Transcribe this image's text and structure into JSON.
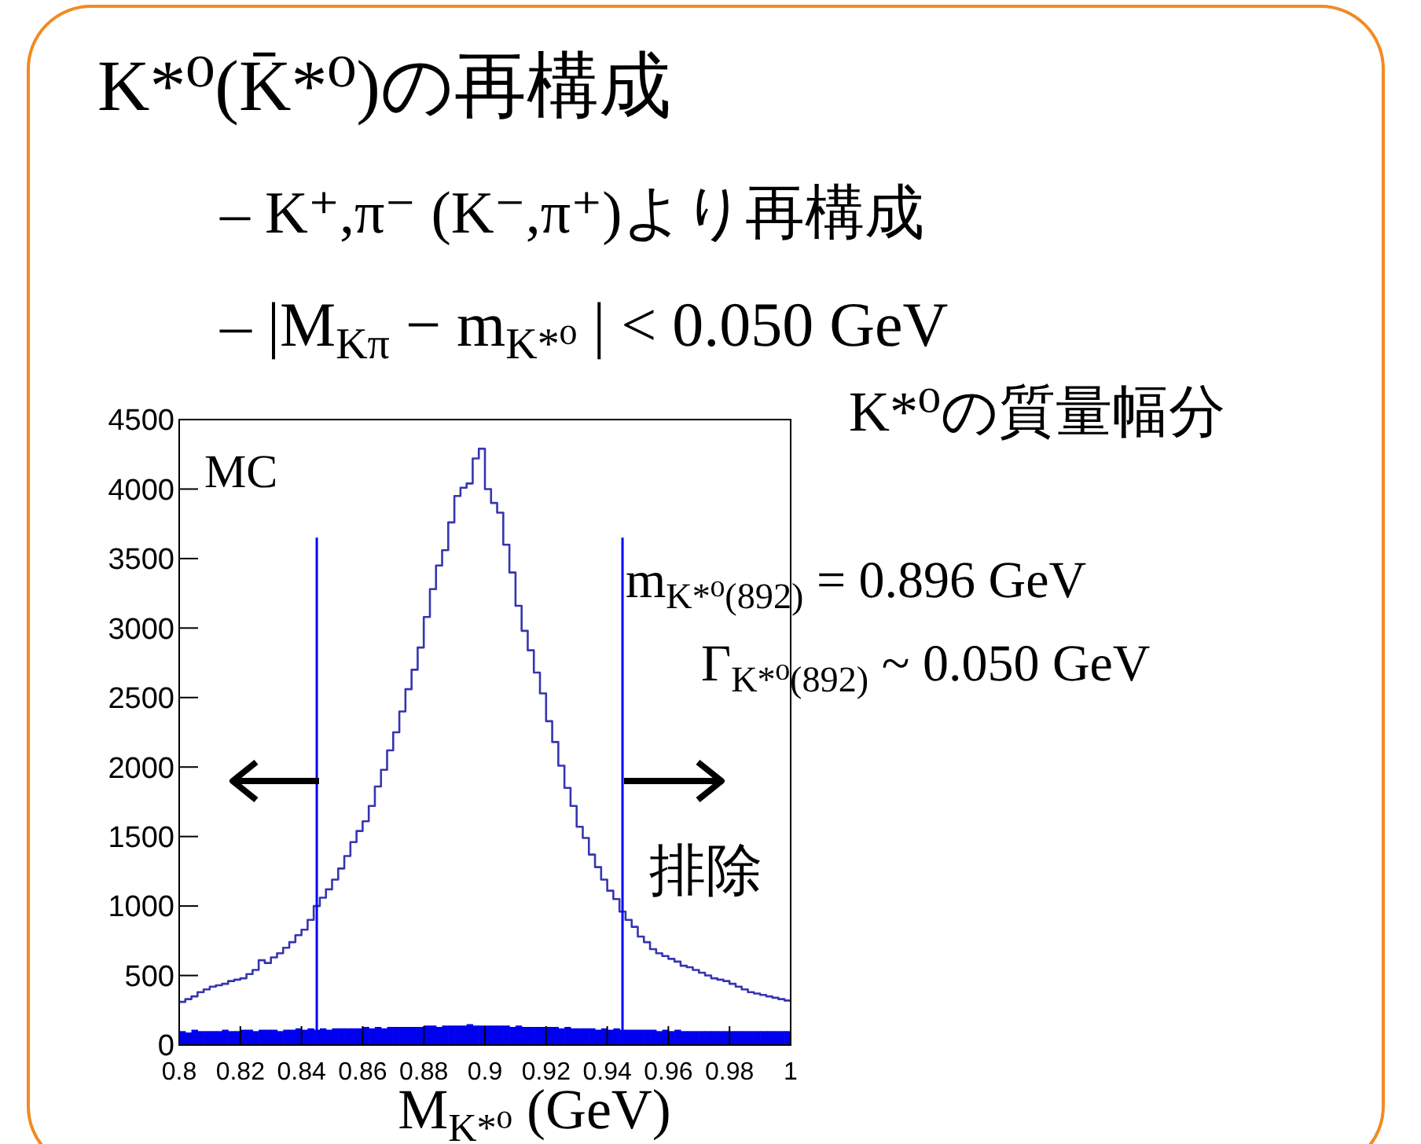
{
  "chart_data": {
    "type": "histogram",
    "title": "K*⁰(K̄*⁰)の再構成",
    "xlabel": "M$_{K*⁰}$ (GeV)",
    "annotations": [
      "– K⁺,π⁻ (K⁻,π⁺)より再構成",
      "– |M$_{Kπ}$ − m$_{K*⁰}$| < 0.050 GeV",
      "K*⁰の質量幅分",
      "MC",
      "m$_{K*⁰(892)}$ = 0.896 GeV",
      "Γ$_{K*⁰(892)}$ ~ 0.050 GeV",
      "排除"
    ],
    "bins": [
      0.8,
      0.802,
      0.804,
      0.806,
      0.808,
      0.81,
      0.812,
      0.814,
      0.816,
      0.818,
      0.82,
      0.822,
      0.824,
      0.826,
      0.828,
      0.83,
      0.832,
      0.834,
      0.836,
      0.838,
      0.84,
      0.842,
      0.844,
      0.846,
      0.848,
      0.85,
      0.852,
      0.854,
      0.856,
      0.858,
      0.86,
      0.862,
      0.864,
      0.866,
      0.868,
      0.87,
      0.872,
      0.874,
      0.876,
      0.878,
      0.88,
      0.882,
      0.884,
      0.886,
      0.888,
      0.89,
      0.892,
      0.894,
      0.896,
      0.898,
      0.9,
      0.902,
      0.904,
      0.906,
      0.908,
      0.91,
      0.912,
      0.914,
      0.916,
      0.918,
      0.92,
      0.922,
      0.924,
      0.926,
      0.928,
      0.93,
      0.932,
      0.934,
      0.936,
      0.938,
      0.94,
      0.942,
      0.944,
      0.946,
      0.948,
      0.95,
      0.952,
      0.954,
      0.956,
      0.958,
      0.96,
      0.962,
      0.964,
      0.966,
      0.968,
      0.97,
      0.972,
      0.974,
      0.976,
      0.978,
      0.98,
      0.982,
      0.984,
      0.986,
      0.988,
      0.99,
      0.992,
      0.994,
      0.996,
      0.998,
      1.0
    ],
    "series": [
      {
        "color": "#3535b0",
        "values": [
          310,
          330,
          350,
          380,
          400,
          420,
          430,
          440,
          460,
          470,
          480,
          510,
          540,
          610,
          590,
          630,
          660,
          700,
          740,
          790,
          830,
          900,
          1000,
          1060,
          1120,
          1190,
          1270,
          1360,
          1460,
          1540,
          1610,
          1720,
          1860,
          1980,
          2120,
          2250,
          2400,
          2560,
          2700,
          2860,
          3080,
          3280,
          3450,
          3560,
          3760,
          3950,
          4010,
          4040,
          4220,
          4290,
          4000,
          3900,
          3830,
          3600,
          3400,
          3160,
          2980,
          2840,
          2680,
          2530,
          2330,
          2180,
          2010,
          1850,
          1720,
          1570,
          1490,
          1370,
          1280,
          1190,
          1110,
          1050,
          960,
          900,
          850,
          780,
          740,
          690,
          660,
          640,
          620,
          600,
          570,
          560,
          540,
          520,
          500,
          480,
          470,
          460,
          440,
          420,
          400,
          380,
          370,
          360,
          350,
          340,
          330,
          320
        ]
      },
      {
        "color": "#0000ee",
        "values": [
          100,
          90,
          110,
          100,
          100,
          100,
          100,
          110,
          100,
          100,
          110,
          110,
          100,
          110,
          110,
          110,
          100,
          110,
          110,
          120,
          110,
          120,
          110,
          120,
          110,
          120,
          120,
          120,
          120,
          120,
          130,
          120,
          130,
          120,
          130,
          130,
          130,
          130,
          130,
          130,
          140,
          140,
          130,
          140,
          140,
          140,
          140,
          150,
          140,
          140,
          140,
          140,
          140,
          140,
          130,
          140,
          130,
          130,
          130,
          130,
          130,
          130,
          120,
          130,
          120,
          120,
          120,
          120,
          110,
          120,
          110,
          120,
          110,
          110,
          110,
          110,
          110,
          110,
          100,
          110,
          100,
          110,
          100,
          100,
          100,
          100,
          100,
          100,
          100,
          100,
          100,
          100,
          100,
          100,
          100,
          100,
          100,
          100,
          100,
          100
        ]
      }
    ],
    "xlim": [
      0.8,
      1
    ],
    "xticks": [
      0.8,
      0.82,
      0.84,
      0.86,
      0.88,
      0.9,
      0.92,
      0.94,
      0.96,
      0.98,
      1
    ],
    "ylim": [
      0,
      4500
    ],
    "yticks": [
      0,
      500,
      1000,
      1500,
      2000,
      2500,
      3000,
      3500,
      4000,
      4500
    ],
    "ref_lines": [
      {
        "axis": "x",
        "value": 0.845,
        "color": "#0000ff"
      },
      {
        "axis": "x",
        "value": 0.945,
        "color": "#0000ff"
      }
    ]
  }
}
